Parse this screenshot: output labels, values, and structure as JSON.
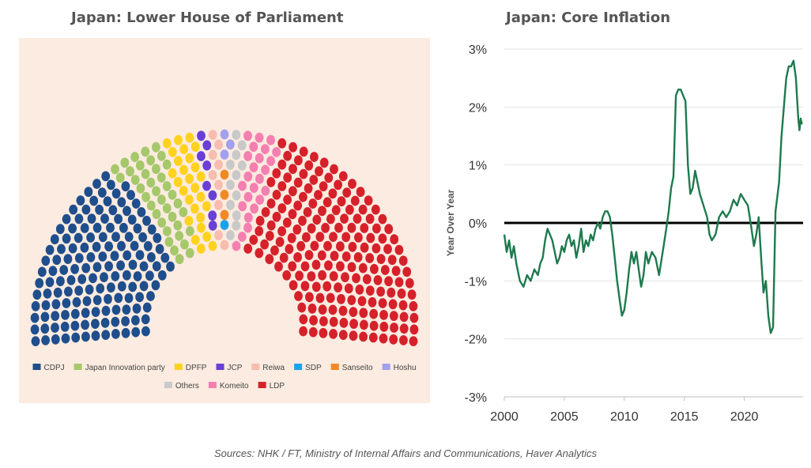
{
  "chart_data": [
    {
      "type": "parliament",
      "title": "Japan: Lower House of Parliament",
      "total_seats": 465,
      "parties": [
        {
          "name": "CDPJ",
          "seats": 148,
          "color": "#1f4e8c"
        },
        {
          "name": "Japan Innovation party",
          "seats": 38,
          "color": "#a5c86b"
        },
        {
          "name": "DPFP",
          "seats": 27,
          "color": "#ffd21f"
        },
        {
          "name": "JCP",
          "seats": 8,
          "color": "#6a3fd6"
        },
        {
          "name": "Reiwa",
          "seats": 9,
          "color": "#f7bdb0"
        },
        {
          "name": "SDP",
          "seats": 1,
          "color": "#1aa3e8"
        },
        {
          "name": "Sanseito",
          "seats": 3,
          "color": "#f08a24"
        },
        {
          "name": "Hoshu",
          "seats": 3,
          "color": "#a3a0ee"
        },
        {
          "name": "Others",
          "seats": 12,
          "color": "#c9c9c9"
        },
        {
          "name": "Komeito",
          "seats": 24,
          "color": "#f57fb0"
        },
        {
          "name": "LDP",
          "seats": 192,
          "color": "#d6212b"
        }
      ],
      "legend_rows": [
        [
          "CDPJ",
          "Japan Innovation party",
          "DPFP",
          "JCP",
          "Reiwa",
          "SDP",
          "Sanseito",
          "Hoshu"
        ],
        [
          "Others",
          "Komeito",
          "LDP"
        ]
      ]
    },
    {
      "type": "line",
      "title": "Japan: Core Inflation",
      "ylabel": "Year Over Year",
      "xlabel": "",
      "xlim": [
        2000,
        2024.9
      ],
      "ylim": [
        -3,
        3
      ],
      "x_ticks": [
        2000,
        2005,
        2010,
        2015,
        2020
      ],
      "y_ticks": [
        -3,
        -2,
        -1,
        0,
        1,
        2,
        3
      ],
      "y_tick_labels": [
        "-3%",
        "-2%",
        "-1%",
        "0%",
        "1%",
        "2%",
        "3%"
      ],
      "reference_line": 0,
      "grid": "horizontal",
      "series": [
        {
          "color": "#1e7a4e",
          "points": [
            [
              2000.0,
              -0.2
            ],
            [
              2000.2,
              -0.5
            ],
            [
              2000.4,
              -0.3
            ],
            [
              2000.6,
              -0.6
            ],
            [
              2000.8,
              -0.4
            ],
            [
              2001.0,
              -0.7
            ],
            [
              2001.3,
              -1.0
            ],
            [
              2001.6,
              -1.1
            ],
            [
              2001.9,
              -0.9
            ],
            [
              2002.2,
              -1.0
            ],
            [
              2002.5,
              -0.8
            ],
            [
              2002.8,
              -0.9
            ],
            [
              2003.0,
              -0.7
            ],
            [
              2003.2,
              -0.6
            ],
            [
              2003.4,
              -0.3
            ],
            [
              2003.6,
              -0.1
            ],
            [
              2003.8,
              -0.2
            ],
            [
              2004.0,
              -0.3
            ],
            [
              2004.2,
              -0.5
            ],
            [
              2004.4,
              -0.7
            ],
            [
              2004.6,
              -0.6
            ],
            [
              2004.8,
              -0.4
            ],
            [
              2005.0,
              -0.5
            ],
            [
              2005.2,
              -0.3
            ],
            [
              2005.4,
              -0.2
            ],
            [
              2005.6,
              -0.4
            ],
            [
              2005.8,
              -0.3
            ],
            [
              2006.0,
              -0.6
            ],
            [
              2006.2,
              -0.4
            ],
            [
              2006.4,
              -0.1
            ],
            [
              2006.6,
              -0.5
            ],
            [
              2006.8,
              -0.3
            ],
            [
              2007.0,
              -0.4
            ],
            [
              2007.2,
              -0.2
            ],
            [
              2007.4,
              -0.3
            ],
            [
              2007.6,
              -0.1
            ],
            [
              2007.8,
              0.0
            ],
            [
              2008.0,
              -0.1
            ],
            [
              2008.2,
              0.1
            ],
            [
              2008.4,
              0.2
            ],
            [
              2008.6,
              0.2
            ],
            [
              2008.8,
              0.1
            ],
            [
              2009.0,
              -0.2
            ],
            [
              2009.2,
              -0.6
            ],
            [
              2009.4,
              -1.0
            ],
            [
              2009.6,
              -1.3
            ],
            [
              2009.8,
              -1.6
            ],
            [
              2010.0,
              -1.5
            ],
            [
              2010.2,
              -1.2
            ],
            [
              2010.4,
              -0.8
            ],
            [
              2010.6,
              -0.5
            ],
            [
              2010.8,
              -0.7
            ],
            [
              2011.0,
              -0.5
            ],
            [
              2011.2,
              -0.8
            ],
            [
              2011.4,
              -1.1
            ],
            [
              2011.6,
              -0.9
            ],
            [
              2011.8,
              -0.5
            ],
            [
              2012.0,
              -0.7
            ],
            [
              2012.3,
              -0.5
            ],
            [
              2012.6,
              -0.6
            ],
            [
              2012.9,
              -0.9
            ],
            [
              2013.2,
              -0.5
            ],
            [
              2013.5,
              -0.1
            ],
            [
              2013.7,
              0.2
            ],
            [
              2013.9,
              0.6
            ],
            [
              2014.1,
              0.8
            ],
            [
              2014.3,
              2.2
            ],
            [
              2014.5,
              2.3
            ],
            [
              2014.7,
              2.3
            ],
            [
              2014.9,
              2.2
            ],
            [
              2015.1,
              2.1
            ],
            [
              2015.3,
              1.0
            ],
            [
              2015.5,
              0.5
            ],
            [
              2015.7,
              0.6
            ],
            [
              2015.9,
              0.9
            ],
            [
              2016.1,
              0.7
            ],
            [
              2016.3,
              0.5
            ],
            [
              2016.6,
              0.3
            ],
            [
              2016.9,
              0.1
            ],
            [
              2017.1,
              -0.2
            ],
            [
              2017.3,
              -0.3
            ],
            [
              2017.6,
              -0.2
            ],
            [
              2017.9,
              0.1
            ],
            [
              2018.2,
              0.2
            ],
            [
              2018.5,
              0.1
            ],
            [
              2018.8,
              0.2
            ],
            [
              2019.1,
              0.4
            ],
            [
              2019.4,
              0.3
            ],
            [
              2019.7,
              0.5
            ],
            [
              2020.0,
              0.4
            ],
            [
              2020.3,
              0.3
            ],
            [
              2020.6,
              -0.1
            ],
            [
              2020.8,
              -0.4
            ],
            [
              2021.0,
              -0.2
            ],
            [
              2021.2,
              0.1
            ],
            [
              2021.4,
              -0.6
            ],
            [
              2021.6,
              -1.2
            ],
            [
              2021.8,
              -1.0
            ],
            [
              2022.0,
              -1.6
            ],
            [
              2022.2,
              -1.9
            ],
            [
              2022.4,
              -1.8
            ],
            [
              2022.6,
              0.2
            ],
            [
              2022.9,
              0.7
            ],
            [
              2023.1,
              1.5
            ],
            [
              2023.3,
              2.0
            ],
            [
              2023.5,
              2.5
            ],
            [
              2023.7,
              2.7
            ],
            [
              2023.9,
              2.7
            ],
            [
              2024.1,
              2.8
            ],
            [
              2024.3,
              2.5
            ],
            [
              2024.5,
              1.8
            ],
            [
              2024.6,
              1.6
            ],
            [
              2024.7,
              1.8
            ],
            [
              2024.8,
              1.7
            ]
          ]
        }
      ]
    }
  ],
  "source_note": "Sources: NHK / FT, Ministry of Internal Affairs and Communications, Haver Analytics"
}
